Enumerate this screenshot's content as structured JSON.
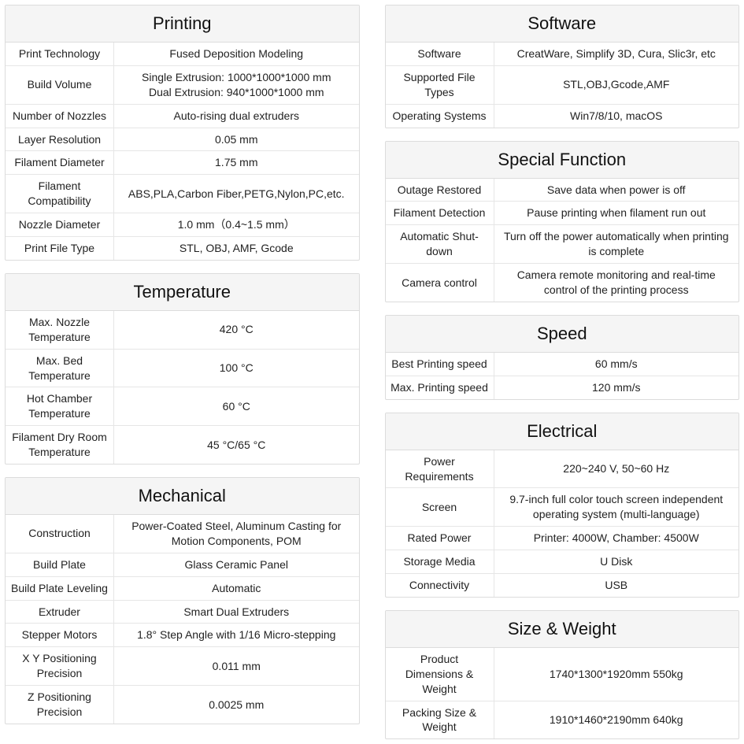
{
  "left": [
    {
      "title": "Printing",
      "rows": [
        {
          "k": "Print Technology",
          "v": "Fused Deposition Modeling"
        },
        {
          "k": "Build Volume",
          "v": "Single Extrusion: 1000*1000*1000 mm\nDual Extrusion:  940*1000*1000 mm"
        },
        {
          "k": "Number of Nozzles",
          "v": "Auto-rising dual extruders"
        },
        {
          "k": "Layer Resolution",
          "v": "0.05 mm"
        },
        {
          "k": "Filament Diameter",
          "v": "1.75 mm"
        },
        {
          "k": "Filament Compatibility",
          "v": "ABS,PLA,Carbon Fiber,PETG,Nylon,PC,etc."
        },
        {
          "k": "Nozzle Diameter",
          "v": "1.0 mm（0.4~1.5 mm）"
        },
        {
          "k": "Print File Type",
          "v": "STL, OBJ, AMF, Gcode"
        }
      ]
    },
    {
      "title": "Temperature",
      "rows": [
        {
          "k": "Max. Nozzle Temperature",
          "v": "420 °C"
        },
        {
          "k": "Max. Bed Temperature",
          "v": "100 °C"
        },
        {
          "k": "Hot Chamber Temperature",
          "v": "60 °C"
        },
        {
          "k": "Filament Dry Room Temperature",
          "v": "45 °C/65 °C"
        }
      ]
    },
    {
      "title": "Mechanical",
      "rows": [
        {
          "k": "Construction",
          "v": "Power-Coated Steel, Aluminum Casting for Motion Components, POM"
        },
        {
          "k": "Build Plate",
          "v": "Glass Ceramic Panel"
        },
        {
          "k": "Build Plate Leveling",
          "v": "Automatic"
        },
        {
          "k": "Extruder",
          "v": "Smart Dual Extruders"
        },
        {
          "k": "Stepper Motors",
          "v": "1.8° Step Angle with 1/16 Micro-stepping"
        },
        {
          "k": "X Y Positioning Precision",
          "v": "0.011 mm"
        },
        {
          "k": "Z Positioning Precision",
          "v": "0.0025 mm"
        }
      ]
    }
  ],
  "right": [
    {
      "title": "Software",
      "rows": [
        {
          "k": "Software",
          "v": "CreatWare, Simplify 3D, Cura, Slic3r, etc"
        },
        {
          "k": "Supported File Types",
          "v": "STL,OBJ,Gcode,AMF"
        },
        {
          "k": "Operating Systems",
          "v": "Win7/8/10, macOS"
        }
      ]
    },
    {
      "title": "Special Function",
      "rows": [
        {
          "k": "Outage Restored",
          "v": "Save data when power is off"
        },
        {
          "k": "Filament Detection",
          "v": "Pause printing when filament run out"
        },
        {
          "k": "Automatic Shut-down",
          "v": "Turn off the power automatically when printing is complete"
        },
        {
          "k": "Camera control",
          "v": "Camera remote monitoring and real-time control of the printing process"
        }
      ]
    },
    {
      "title": "Speed",
      "rows": [
        {
          "k": "Best Printing speed",
          "v": "60 mm/s"
        },
        {
          "k": "Max. Printing speed",
          "v": "120 mm/s"
        }
      ]
    },
    {
      "title": "Electrical",
      "rows": [
        {
          "k": "Power Requirements",
          "v": "220~240 V, 50~60 Hz"
        },
        {
          "k": "Screen",
          "v": "9.7-inch full color touch screen independent operating system (multi-language)"
        },
        {
          "k": "Rated Power",
          "v": "Printer: 4000W, Chamber: 4500W"
        },
        {
          "k": "Storage Media",
          "v": "U Disk"
        },
        {
          "k": "Connectivity",
          "v": "USB"
        }
      ]
    },
    {
      "title": "Size & Weight",
      "rows": [
        {
          "k": "Product Dimensions & Weight",
          "v": "1740*1300*1920mm 550kg"
        },
        {
          "k": "Packing Size & Weight",
          "v": "1910*1460*2190mm 640kg"
        }
      ]
    }
  ],
  "styling": {
    "header_bg": "#f5f5f5",
    "border_color": "#dcdcdc",
    "row_border_color": "#e6e6e6",
    "header_fontsize": 22,
    "cell_fontsize": 14,
    "key_col_width": 138,
    "text_color": "#222"
  }
}
